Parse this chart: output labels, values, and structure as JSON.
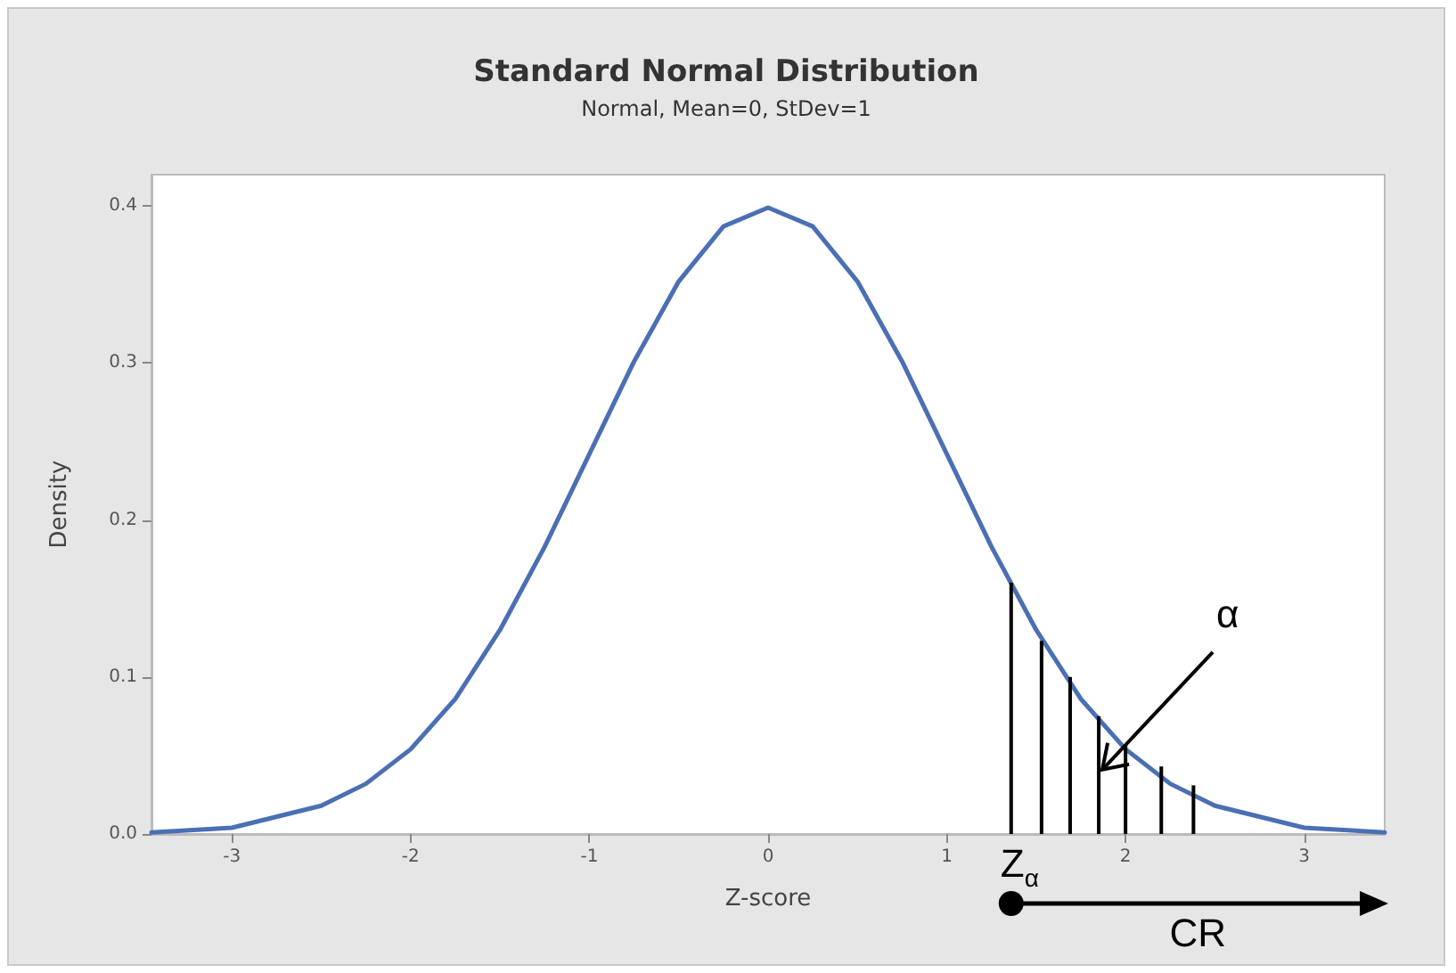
{
  "chart_data": {
    "type": "line",
    "title": "Standard Normal Distribution",
    "subtitle": "Normal, Mean=0, StDev=1",
    "xlabel": "Z-score",
    "ylabel": "Density",
    "xlim": [
      -3.45,
      3.45
    ],
    "xticks": [
      -3,
      -2,
      -1,
      0,
      1,
      2,
      3
    ],
    "ylim": [
      0,
      0.42
    ],
    "yticks": [
      {
        "value": 0,
        "label": "0.0"
      },
      {
        "value": 0.1,
        "label": "0.1"
      },
      {
        "value": 0.2,
        "label": "0.2"
      },
      {
        "value": 0.3,
        "label": "0.3"
      },
      {
        "value": 0.4,
        "label": "0.4"
      }
    ],
    "grid": false,
    "marker": "none",
    "line_style": "solid",
    "series": [
      {
        "color": "#4a6fb5",
        "x": [
          -3.45,
          -3,
          -2.5,
          -2.25,
          -2,
          -1.75,
          -1.5,
          -1.25,
          -1,
          -0.75,
          -0.5,
          -0.25,
          0,
          0.25,
          0.5,
          0.75,
          1,
          1.25,
          1.5,
          1.75,
          2,
          2.25,
          2.5,
          3,
          3.45
        ],
        "values": [
          0.001,
          0.004,
          0.018,
          0.032,
          0.054,
          0.086,
          0.13,
          0.183,
          0.242,
          0.301,
          0.352,
          0.387,
          0.399,
          0.387,
          0.352,
          0.301,
          0.242,
          0.183,
          0.13,
          0.086,
          0.054,
          0.032,
          0.018,
          0.004,
          0.001
        ]
      },
      {
        "type": "bar",
        "color": "#000000",
        "x": [
          1.36,
          1.53,
          1.69,
          1.85,
          2.0,
          2.2,
          2.38
        ],
        "values": [
          0.16,
          0.123,
          0.1,
          0.075,
          0.057,
          0.043,
          0.031
        ]
      }
    ],
    "annotations": [
      {
        "text": "α",
        "x": 1.87,
        "y": 0.041
      },
      "Z$_{α}$",
      "CR"
    ]
  }
}
